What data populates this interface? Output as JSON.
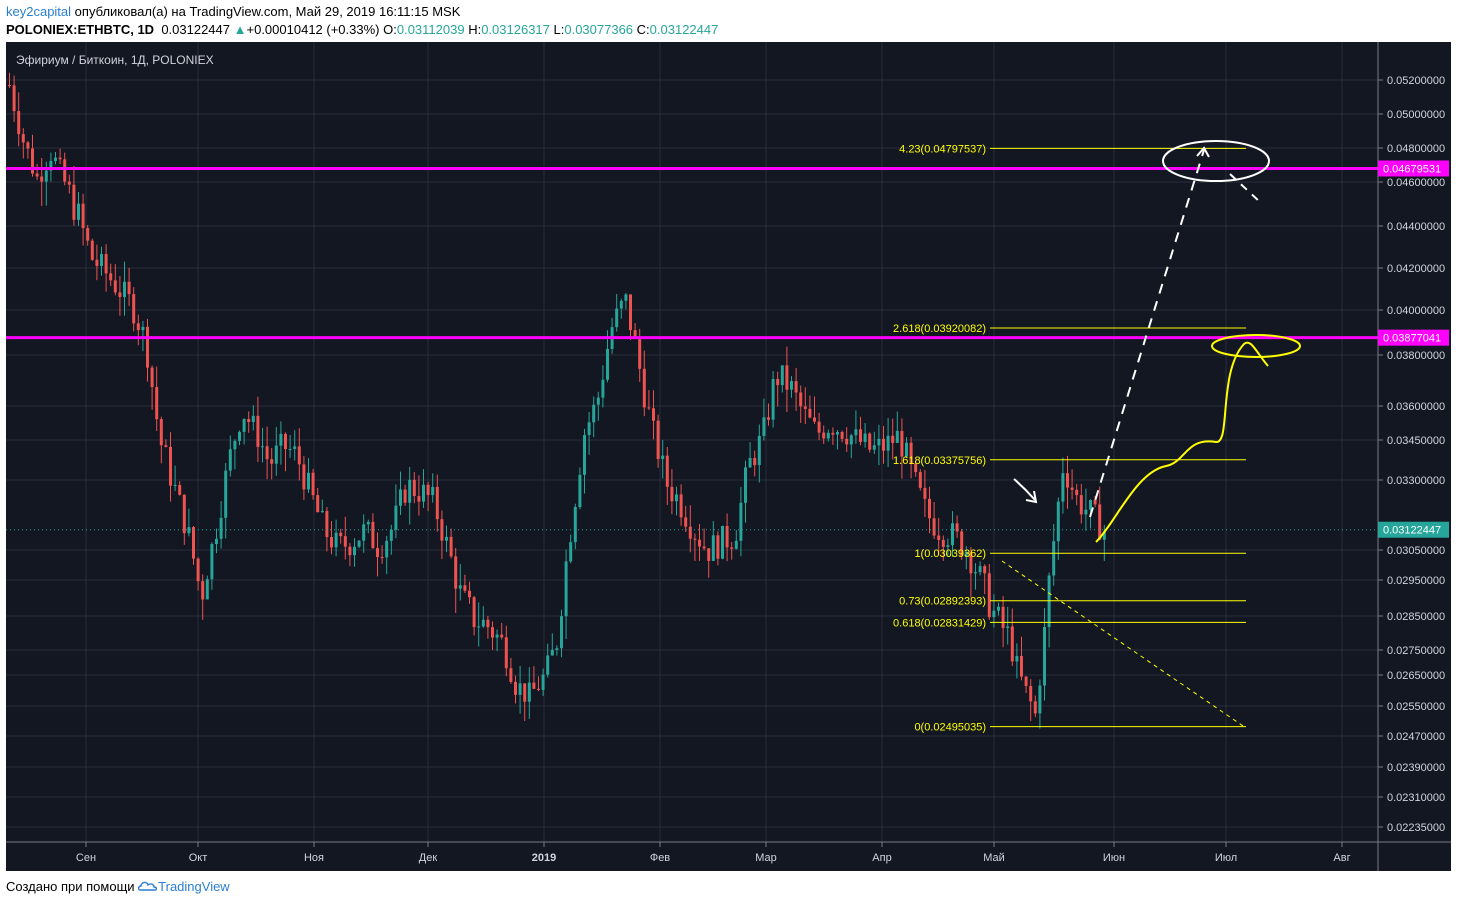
{
  "header": {
    "author": "key2capital",
    "published_text": "опубликовал(а) на TradingView.com, Май 29, 2019 16:11:15 MSK",
    "symbol": "POLONIEX:ETHBTC, 1D",
    "last": "0.03122447",
    "change_arrow": "▲",
    "change": "+0.00010412 (+0.33%)",
    "o_label": "O:",
    "o_value": "0.03112039",
    "h_label": "H:",
    "h_value": "0.03126317",
    "l_label": "L:",
    "l_value": "0.03077366",
    "c_label": "C:",
    "c_value": "0.03122447"
  },
  "footer": {
    "created_with": "Создано при помощи",
    "brand": "TradingView",
    "brand_icon": "tradingview-cloud-icon"
  },
  "colors": {
    "background": "#131722",
    "grid": "#2a2e39",
    "up": "#26a69a",
    "down": "#ef5350",
    "level_line": "#ff00ff",
    "fib": "#ffff00",
    "annotation_white": "#ffffff",
    "last_price": "#26a69a"
  },
  "chart_data": {
    "type": "candlestick",
    "title": "Эфириум / Биткоин, 1Д, POLONIEX",
    "x_labels": [
      "Сен",
      "Окт",
      "Ноя",
      "Дек",
      "2019",
      "Фев",
      "Мар",
      "Апр",
      "Май",
      "Июн",
      "Июл",
      "Авг"
    ],
    "y_tick_labels": [
      "0.05200000",
      "0.05000000",
      "0.04800000",
      "0.04600000",
      "0.04400000",
      "0.04200000",
      "0.04000000",
      "0.03800000",
      "0.03600000",
      "0.03450000",
      "0.03300000",
      "0.03050000",
      "0.02950000",
      "0.02850000",
      "0.02750000",
      "0.02650000",
      "0.02550000",
      "0.02470000",
      "0.02390000",
      "0.02310000",
      "0.02235000"
    ],
    "horizontal_levels": [
      {
        "label": "0.04679531",
        "value": 0.04679531
      },
      {
        "label": "0.03877041",
        "value": 0.03877041
      }
    ],
    "last_price": {
      "label": "0.03122447",
      "value": 0.03122447
    },
    "fib_levels": [
      {
        "label": "4.23(0.04797537)",
        "value": 0.04797537
      },
      {
        "label": "2.618(0.03920082)",
        "value": 0.03920082
      },
      {
        "label": "1.618(0.03375756)",
        "value": 0.03375756
      },
      {
        "label": "1(0.03039362)",
        "value": 0.03039362
      },
      {
        "label": "0.73(0.02892393)",
        "value": 0.02892393
      },
      {
        "label": "0.618(0.02831429)",
        "value": 0.02831429
      },
      {
        "label": "0(0.02495035)",
        "value": 0.02495035
      }
    ],
    "price_path": [
      0.0517,
      0.0485,
      0.0462,
      0.0478,
      0.046,
      0.0445,
      0.0425,
      0.0418,
      0.041,
      0.0402,
      0.0385,
      0.0345,
      0.0328,
      0.0312,
      0.029,
      0.031,
      0.0336,
      0.0358,
      0.0349,
      0.0336,
      0.0343,
      0.0339,
      0.0325,
      0.0312,
      0.0306,
      0.0308,
      0.0312,
      0.0306,
      0.0313,
      0.0328,
      0.0326,
      0.0322,
      0.0306,
      0.029,
      0.0284,
      0.0282,
      0.0277,
      0.0262,
      0.0258,
      0.0264,
      0.0278,
      0.0312,
      0.0348,
      0.0363,
      0.0392,
      0.0405,
      0.0376,
      0.0349,
      0.0329,
      0.0322,
      0.0312,
      0.0305,
      0.0308,
      0.031,
      0.0335,
      0.0346,
      0.0372,
      0.0368,
      0.0357,
      0.0348,
      0.0352,
      0.0349,
      0.0345,
      0.0341,
      0.0343,
      0.0347,
      0.0331,
      0.0318,
      0.0312,
      0.031,
      0.0305,
      0.0295,
      0.0285,
      0.0279,
      0.0262,
      0.0252,
      0.0296,
      0.0336,
      0.0323,
      0.0318,
      0.0312
    ]
  }
}
